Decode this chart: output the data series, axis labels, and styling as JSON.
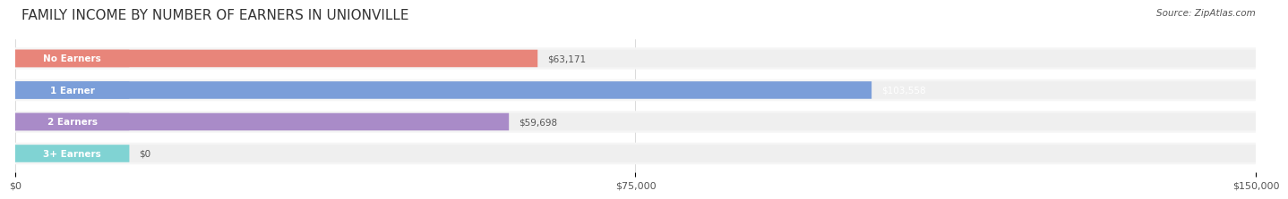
{
  "title": "FAMILY INCOME BY NUMBER OF EARNERS IN UNIONVILLE",
  "source": "Source: ZipAtlas.com",
  "categories": [
    "No Earners",
    "1 Earner",
    "2 Earners",
    "3+ Earners"
  ],
  "values": [
    63171,
    103558,
    59698,
    0
  ],
  "bar_colors": [
    "#E8857A",
    "#7B9ED9",
    "#A98BC8",
    "#6DCFCF"
  ],
  "bar_bg_color": "#EFEFEF",
  "label_bg_color": "#D8D8D8",
  "value_labels": [
    "$63,171",
    "$103,558",
    "$59,698",
    "$0"
  ],
  "value_label_colors": [
    "#555555",
    "#FFFFFF",
    "#555555",
    "#555555"
  ],
  "xmax": 150000,
  "xticks": [
    0,
    75000,
    150000
  ],
  "xtick_labels": [
    "$0",
    "$75,000",
    "$150,000"
  ],
  "fig_bg_color": "#FFFFFF",
  "title_fontsize": 11,
  "bar_height": 0.55,
  "row_bg_color": "#F5F5F5"
}
